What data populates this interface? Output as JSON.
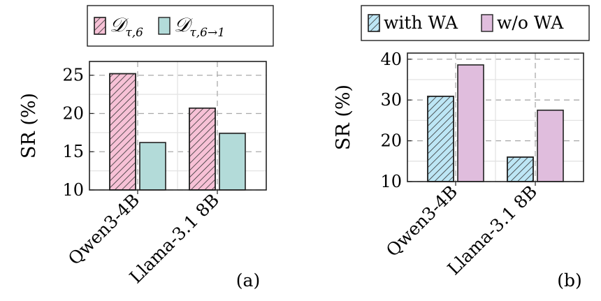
{
  "chart_data": [
    {
      "type": "bar",
      "panel_label": "(a)",
      "categories": [
        "Qwen3-4B",
        "Llama-3.1 8B"
      ],
      "series": [
        {
          "name": "𝒟",
          "sub": "τ,6",
          "values": [
            25.2,
            20.7
          ],
          "color": "#f7c1d6",
          "hatch": true
        },
        {
          "name": "𝒟",
          "sub": "τ,6→1",
          "values": [
            16.2,
            17.4
          ],
          "color": "#b3dbd9",
          "hatch": false
        }
      ],
      "ylabel": "SR (%)",
      "yticks": [
        10,
        15,
        20,
        25
      ],
      "ylim": [
        10,
        26.8
      ],
      "grid": true,
      "legend_position": "top"
    },
    {
      "type": "bar",
      "panel_label": "(b)",
      "categories": [
        "Qwen3-4B",
        "Llama-3.1 8B"
      ],
      "series": [
        {
          "name": "with WA",
          "sub": "",
          "values": [
            30.9,
            16.0
          ],
          "color": "#bde6f5",
          "hatch": true
        },
        {
          "name": "w/o WA",
          "sub": "",
          "values": [
            38.6,
            27.5
          ],
          "color": "#e0bddd",
          "hatch": false
        }
      ],
      "ylabel": "SR (%)",
      "yticks": [
        10,
        20,
        30,
        40
      ],
      "ylim": [
        10,
        41.5
      ],
      "grid": true,
      "legend_position": "top"
    }
  ]
}
